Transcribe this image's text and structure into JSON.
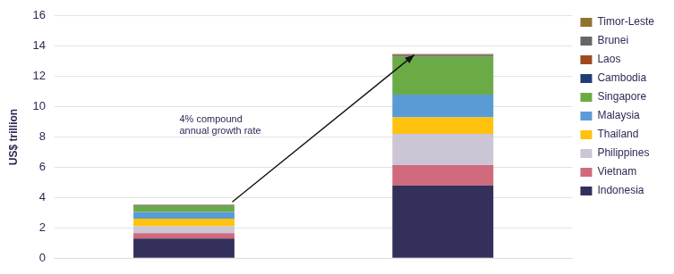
{
  "chart_data": {
    "type": "bar",
    "stacked": true,
    "y_label": "US$ trillion",
    "annotation": [
      "4% compound",
      "annual growth rate"
    ],
    "categories": [
      null,
      null
    ],
    "ylim": [
      0,
      16
    ],
    "yticks": [
      0,
      2,
      4,
      6,
      8,
      10,
      12,
      14,
      16
    ],
    "grid": true,
    "legend": "right",
    "tick_labels": "y",
    "series": [
      {
        "name": "Indonesia",
        "color": "#33305c",
        "values": [
          1.3,
          4.8
        ]
      },
      {
        "name": "Vietnam",
        "color": "#d06a7d",
        "values": [
          0.35,
          1.35
        ]
      },
      {
        "name": "Philippines",
        "color": "#cbc5d5",
        "values": [
          0.45,
          2.05
        ]
      },
      {
        "name": "Thailand",
        "color": "#ffc20e",
        "values": [
          0.5,
          1.1
        ]
      },
      {
        "name": "Malaysia",
        "color": "#5b9bd5",
        "values": [
          0.45,
          1.5
        ]
      },
      {
        "name": "Singapore",
        "color": "#6aab45",
        "values": [
          0.4,
          2.5
        ]
      },
      {
        "name": "Cambodia",
        "color": "#1f3f73",
        "values": [
          0.03,
          0.07
        ]
      },
      {
        "name": "Laos",
        "color": "#9e4a1e",
        "values": [
          0.02,
          0.06
        ]
      },
      {
        "name": "Brunei",
        "color": "#666666",
        "values": [
          0.02,
          0.03
        ]
      },
      {
        "name": "Timor-Leste",
        "color": "#8f7330",
        "values": [
          0.01,
          0.03
        ]
      }
    ]
  }
}
